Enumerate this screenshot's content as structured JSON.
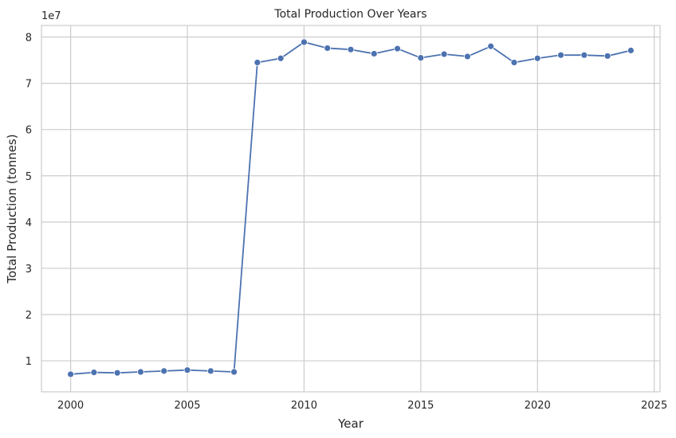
{
  "chart_data": {
    "type": "line",
    "title": "Total Production Over Years",
    "xlabel": "Year",
    "ylabel": "Total Production (tonnes)",
    "y_offset_label": "1e7",
    "xlim": [
      1998.75,
      2025.25
    ],
    "ylim": [
      3300000,
      82500000
    ],
    "x_ticks": [
      2000,
      2005,
      2010,
      2015,
      2020,
      2025
    ],
    "y_ticks": [
      10000000,
      20000000,
      30000000,
      40000000,
      50000000,
      60000000,
      70000000,
      80000000
    ],
    "y_tick_labels": [
      "1",
      "2",
      "3",
      "4",
      "5",
      "6",
      "7",
      "8"
    ],
    "grid": true,
    "line_color": "#4c72b0",
    "series": [
      {
        "x": [
          2000,
          2001,
          2002,
          2003,
          2004,
          2005,
          2006,
          2007,
          2008,
          2009,
          2010,
          2011,
          2012,
          2013,
          2014,
          2015,
          2016,
          2017,
          2018,
          2019,
          2020,
          2021,
          2022,
          2023,
          2024
        ],
        "values": [
          7100000,
          7500000,
          7400000,
          7600000,
          7800000,
          8000000,
          7800000,
          7600000,
          74500000,
          75400000,
          78900000,
          77600000,
          77300000,
          76400000,
          77500000,
          75500000,
          76300000,
          75800000,
          78000000,
          74500000,
          75400000,
          76100000,
          76100000,
          75900000,
          77100000
        ]
      }
    ]
  }
}
